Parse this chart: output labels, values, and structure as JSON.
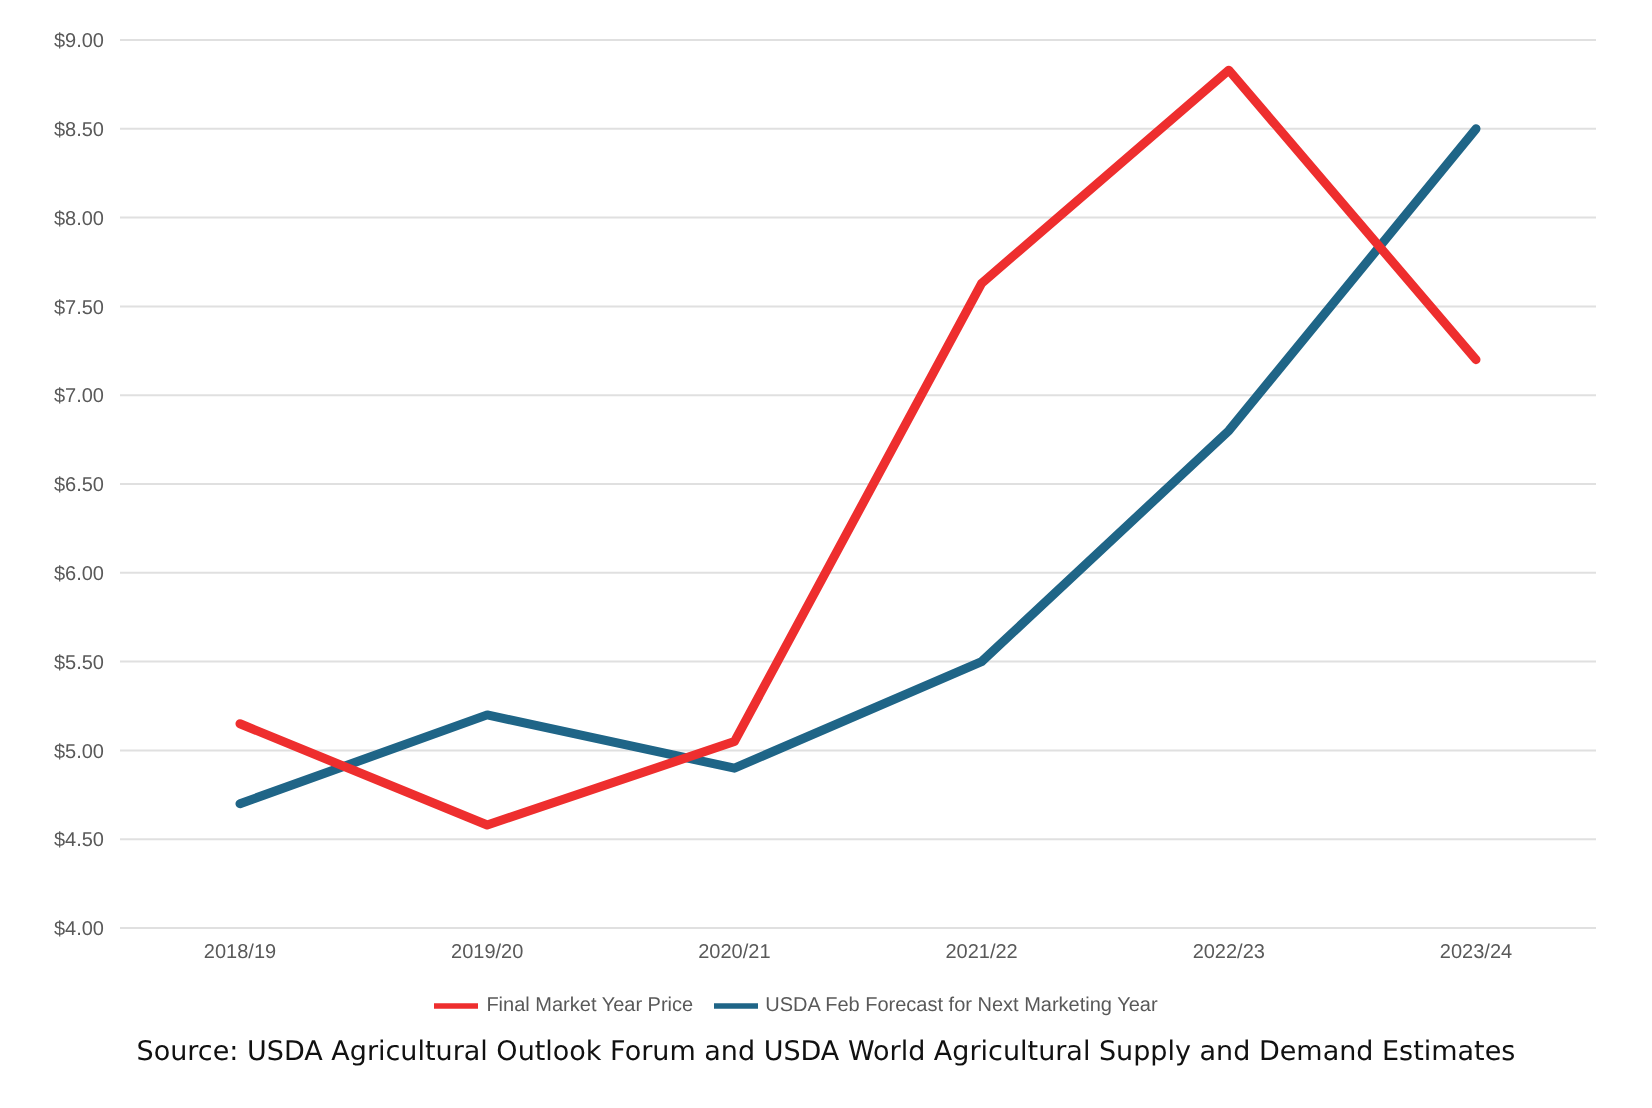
{
  "chart_data": {
    "type": "line",
    "categories": [
      "2018/19",
      "2019/20",
      "2020/21",
      "2021/22",
      "2022/23",
      "2023/24"
    ],
    "series": [
      {
        "name": "USDA Feb Forecast for Next Marketing Year",
        "color": "#1f6587",
        "values": [
          4.7,
          5.2,
          4.9,
          5.5,
          6.8,
          8.5
        ]
      },
      {
        "name": "Final Market Year Price",
        "color": "#ee2e2e",
        "values": [
          5.15,
          4.58,
          5.05,
          7.63,
          8.83,
          7.2
        ]
      }
    ],
    "ylim": [
      4,
      9
    ],
    "yticks": [
      {
        "value": 4,
        "label": "$4.00"
      },
      {
        "value": 4.5,
        "label": "$4.50"
      },
      {
        "value": 5,
        "label": "$5.00"
      },
      {
        "value": 5.5,
        "label": "$5.50"
      },
      {
        "value": 6,
        "label": "$6.00"
      },
      {
        "value": 6.5,
        "label": "$6.50"
      },
      {
        "value": 7,
        "label": "$7.00"
      },
      {
        "value": 7.5,
        "label": "$7.50"
      },
      {
        "value": 8,
        "label": "$8.00"
      },
      {
        "value": 8.5,
        "label": "$8.50"
      },
      {
        "value": 9,
        "label": "$9.00"
      }
    ],
    "grid": "y",
    "legend": "bottom",
    "marker": "none",
    "line_style": "solid",
    "annotations": [
      "Source: USDA Agricultural Outlook Forum and USDA World Agricultural Supply and Demand Estimates"
    ]
  }
}
